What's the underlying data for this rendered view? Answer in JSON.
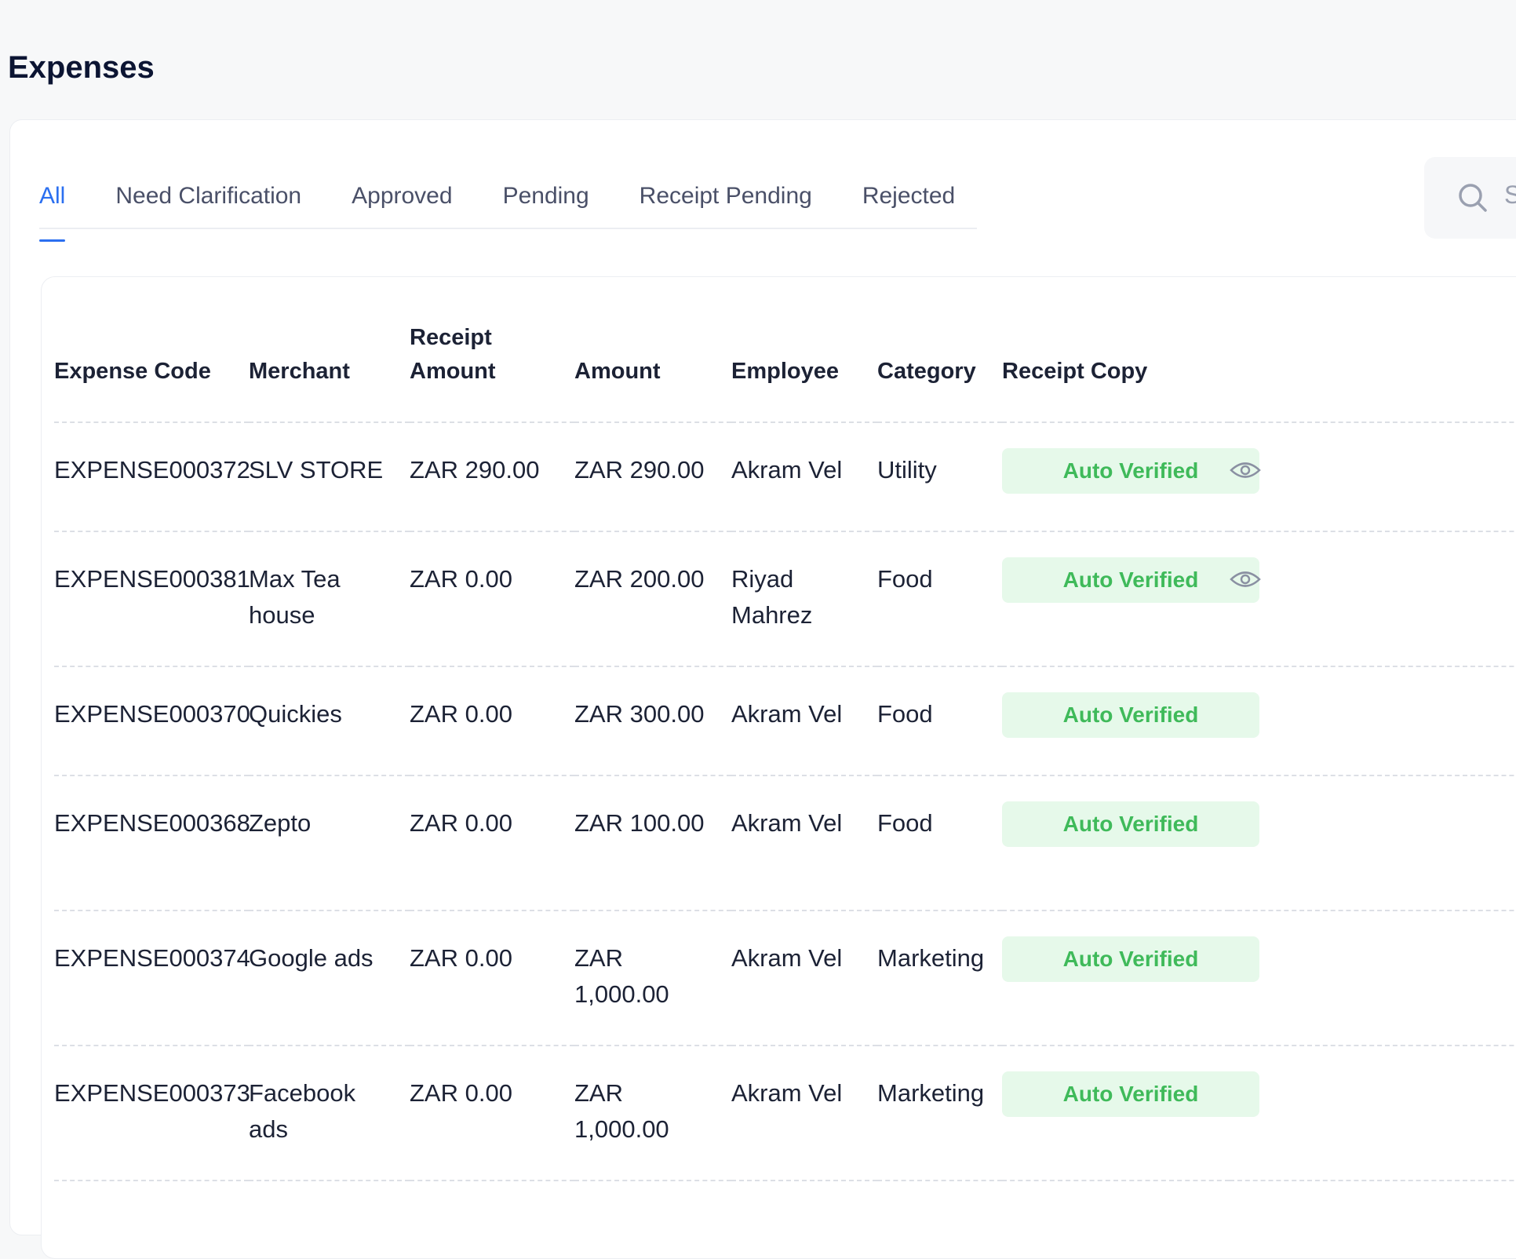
{
  "page": {
    "title": "Expenses"
  },
  "tabs": [
    {
      "label": "All",
      "active": true
    },
    {
      "label": "Need Clarification",
      "active": false
    },
    {
      "label": "Approved",
      "active": false
    },
    {
      "label": "Pending",
      "active": false
    },
    {
      "label": "Receipt Pending",
      "active": false
    },
    {
      "label": "Rejected",
      "active": false
    }
  ],
  "search": {
    "placeholder": "S",
    "icon": "search-icon"
  },
  "table": {
    "headers": {
      "expense_code": "Expense Code",
      "merchant": "Merchant",
      "receipt_amount_line1": "Receipt",
      "receipt_amount_line2": "Amount",
      "amount": "Amount",
      "employee": "Employee",
      "category": "Category",
      "receipt_copy": "Receipt Copy"
    },
    "rows": [
      {
        "code": "EXPENSE000372",
        "merchant": "SLV STORE",
        "receipt_amount": "ZAR 290.00",
        "amount": "ZAR 290.00",
        "employee": "Akram Vel",
        "category": "Utility",
        "status": "Auto Verified",
        "has_view_icon": true
      },
      {
        "code": "EXPENSE000381",
        "merchant": "Max Tea house",
        "receipt_amount": "ZAR 0.00",
        "amount": "ZAR 200.00",
        "employee": "Riyad Mahrez",
        "category": "Food",
        "status": "Auto Verified",
        "has_view_icon": true
      },
      {
        "code": "EXPENSE000370",
        "merchant": "Quickies",
        "receipt_amount": "ZAR 0.00",
        "amount": "ZAR 300.00",
        "employee": "Akram Vel",
        "category": "Food",
        "status": "Auto Verified",
        "has_view_icon": false
      },
      {
        "code": "EXPENSE000368",
        "merchant": "Zepto",
        "receipt_amount": "ZAR 0.00",
        "amount": "ZAR 100.00",
        "employee": "Akram Vel",
        "category": "Food",
        "status": "Auto Verified",
        "has_view_icon": false
      },
      {
        "code": "EXPENSE000374",
        "merchant": "Google ads",
        "receipt_amount": "ZAR 0.00",
        "amount": "ZAR 1,000.00",
        "employee": "Akram Vel",
        "category": "Marketing",
        "status": "Auto Verified",
        "has_view_icon": false
      },
      {
        "code": "EXPENSE000373",
        "merchant": "Facebook ads",
        "receipt_amount": "ZAR 0.00",
        "amount": "ZAR 1,000.00",
        "employee": "Akram Vel",
        "category": "Marketing",
        "status": "Auto Verified",
        "has_view_icon": false
      }
    ]
  },
  "colors": {
    "accent": "#2b6ff0",
    "badge_bg": "#e6f9ea",
    "badge_text": "#3fba5a"
  }
}
